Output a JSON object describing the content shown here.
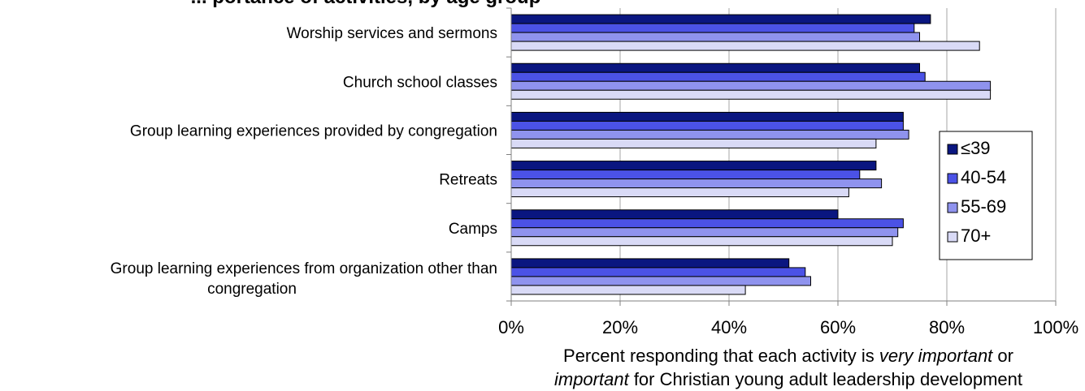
{
  "chart_data": {
    "type": "bar",
    "orientation": "horizontal",
    "title": "... portance of activities, by age group",
    "categories": [
      "Worship services and sermons",
      "Church school classes",
      "Group learning experiences provided by congregation",
      "Retreats",
      "Camps",
      "Group learning experiences from organization other than congregation"
    ],
    "series": [
      {
        "name": "≤39",
        "color": "#0a1680",
        "values": [
          77,
          75,
          72,
          67,
          60,
          51
        ]
      },
      {
        "name": "40-54",
        "color": "#4b52e6",
        "values": [
          74,
          76,
          72,
          64,
          72,
          54
        ]
      },
      {
        "name": "55-69",
        "color": "#8f93ee",
        "values": [
          75,
          88,
          73,
          68,
          71,
          55
        ]
      },
      {
        "name": "70+",
        "color": "#d9daf6",
        "values": [
          86,
          88,
          67,
          62,
          70,
          43
        ]
      }
    ],
    "xlim": [
      0,
      100
    ],
    "x_ticks": [
      "0%",
      "20%",
      "40%",
      "60%",
      "80%",
      "100%"
    ],
    "grid": true,
    "legend_position": "right"
  },
  "xlabel": {
    "part1": "Percent responding that each activity is ",
    "italic1": "very important",
    "part2": " or",
    "italic2": "important",
    "part3": " for Christian young adult leadership development"
  }
}
